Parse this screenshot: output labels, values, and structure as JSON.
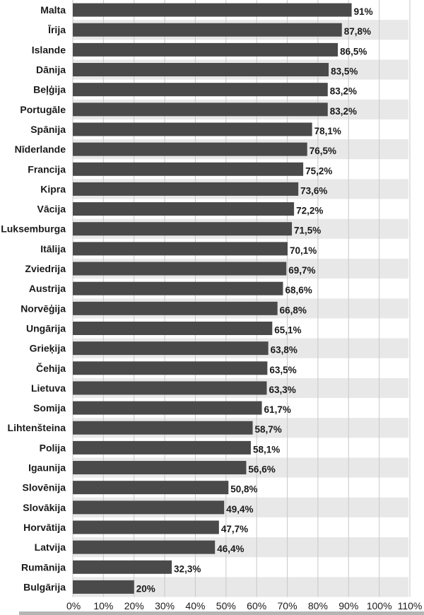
{
  "chart_data": {
    "type": "bar",
    "orientation": "horizontal",
    "categories": [
      "Malta",
      "Īrija",
      "Islande",
      "Dānija",
      "Beļģija",
      "Portugāle",
      "Spānija",
      "Nīderlande",
      "Francija",
      "Kipra",
      "Vācija",
      "Luksemburga",
      "Itālija",
      "Zviedrija",
      "Austrija",
      "Norvēģija",
      "Ungārija",
      "Grieķija",
      "Čehija",
      "Lietuva",
      "Somija",
      "Lihtenšteina",
      "Polija",
      "Igaunija",
      "Slovēnija",
      "Slovākija",
      "Horvātija",
      "Latvija",
      "Rumānija",
      "Bulgārija"
    ],
    "values": [
      91,
      87.8,
      86.5,
      83.5,
      83.2,
      83.2,
      78.1,
      76.5,
      75.2,
      73.6,
      72.2,
      71.5,
      70.1,
      69.7,
      68.6,
      66.8,
      65.1,
      63.8,
      63.5,
      63.3,
      61.7,
      58.7,
      58.1,
      56.6,
      50.8,
      49.4,
      47.7,
      46.4,
      32.3,
      20
    ],
    "value_labels": [
      "91%",
      "87,8%",
      "86,5%",
      "83,5%",
      "83,2%",
      "83,2%",
      "78,1%",
      "76,5%",
      "75,2%",
      "73,6%",
      "72,2%",
      "71,5%",
      "70,1%",
      "69,7%",
      "68,6%",
      "66,8%",
      "65,1%",
      "63,8%",
      "63,5%",
      "63,3%",
      "61,7%",
      "58,7%",
      "58,1%",
      "56,6%",
      "50,8%",
      "49,4%",
      "47,7%",
      "46,4%",
      "32,3%",
      "20%"
    ],
    "x_ticks": [
      "0%",
      "10%",
      "20%",
      "30%",
      "40%",
      "50%",
      "60%",
      "70%",
      "80%",
      "90%",
      "100%",
      "110%"
    ],
    "xlim": [
      0,
      110
    ],
    "grid": true,
    "bar_color": "#4a4a4a",
    "stripe_color": "#e8e8e8",
    "grid_color": "#c8c8c8"
  }
}
